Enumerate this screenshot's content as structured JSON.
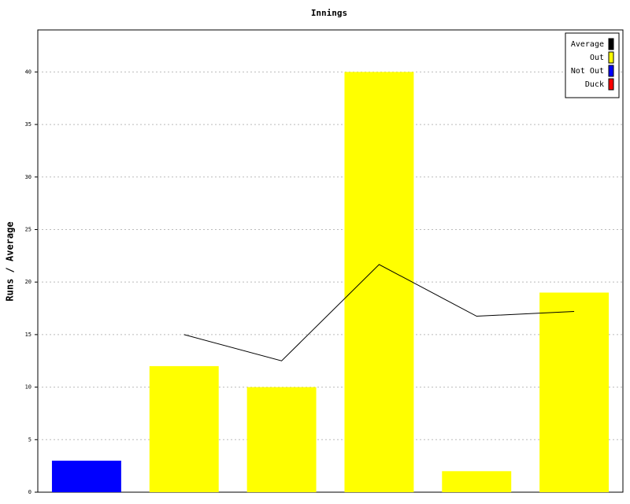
{
  "chart_data": {
    "type": "bar",
    "title": "Innings",
    "y_label": "Runs / Average",
    "categories": [
      null,
      null,
      null,
      null,
      null,
      null
    ],
    "series": [
      {
        "name": "Average",
        "color": "#000000",
        "type": "line",
        "values": [
          null,
          15,
          12.5,
          21.67,
          16.75,
          17.2
        ]
      },
      {
        "name": "Out",
        "color": "#ffff00",
        "type": "bar",
        "values": [
          null,
          12,
          10,
          40,
          2,
          19
        ]
      },
      {
        "name": "Not Out",
        "color": "#0000ff",
        "type": "bar",
        "values": [
          3,
          null,
          null,
          null,
          null,
          null
        ]
      },
      {
        "name": "Duck",
        "color": "#ff0000",
        "type": "bar",
        "values": [
          null,
          null,
          null,
          null,
          null,
          null
        ]
      }
    ],
    "ylim": [
      0,
      44
    ],
    "yticks": [
      0,
      5,
      10,
      15,
      20,
      25,
      30,
      35,
      40
    ],
    "grid": true,
    "legend": "top-right"
  }
}
